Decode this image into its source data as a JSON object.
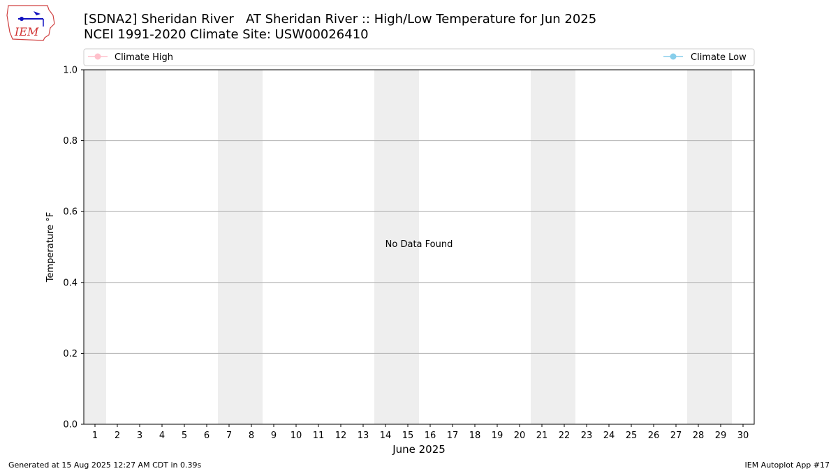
{
  "header": {
    "logo_text": "IEM",
    "title_line1": "[SDNA2] Sheridan River   AT Sheridan River :: High/Low Temperature for Jun 2025",
    "title_line2": "NCEI 1991-2020 Climate Site: USW00026410"
  },
  "footer": {
    "left": "Generated at 15 Aug 2025 12:27 AM CDT in 0.39s",
    "right": "IEM Autoplot App #17"
  },
  "colors": {
    "climate_high": "#ffc0cb",
    "climate_low": "#87ceeb",
    "weekend_shading": "#eeeeee",
    "grid": "#b0b0b0"
  },
  "chart_data": {
    "type": "line",
    "xlabel": "June 2025",
    "ylabel": "Temperature °F",
    "x_categories": [
      "1",
      "2",
      "3",
      "4",
      "5",
      "6",
      "7",
      "8",
      "9",
      "10",
      "11",
      "12",
      "13",
      "14",
      "15",
      "16",
      "17",
      "18",
      "19",
      "20",
      "21",
      "22",
      "23",
      "24",
      "25",
      "26",
      "27",
      "28",
      "29",
      "30"
    ],
    "ylim": [
      0.0,
      1.0
    ],
    "y_ticks": [
      "0.0",
      "0.2",
      "0.4",
      "0.6",
      "0.8",
      "1.0"
    ],
    "weekend_days": [
      1,
      7,
      8,
      14,
      15,
      21,
      22,
      28,
      29
    ],
    "grid": "horizontal",
    "legend_placement": "top",
    "series": [
      {
        "name": "Climate High",
        "values": []
      },
      {
        "name": "Climate Low",
        "values": []
      }
    ],
    "annotation": "No Data Found"
  }
}
